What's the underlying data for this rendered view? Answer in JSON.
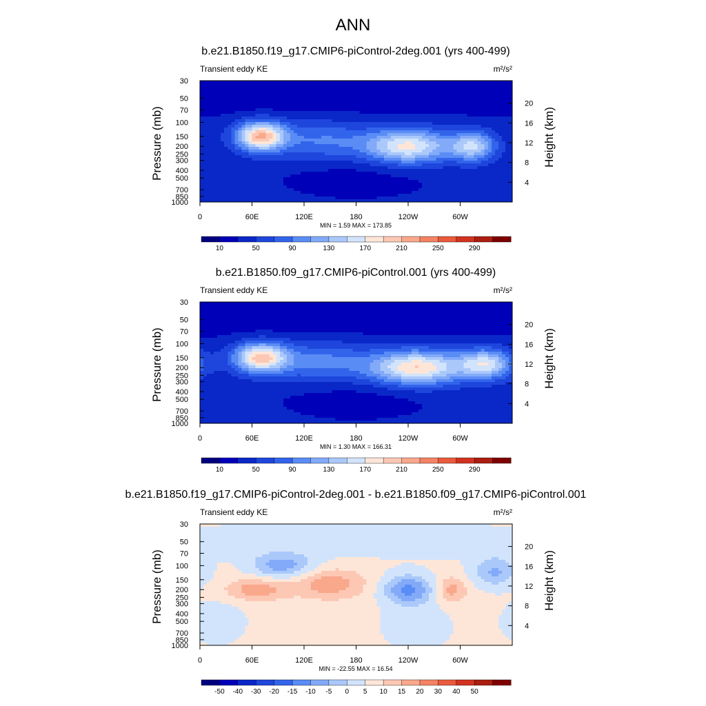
{
  "figure": {
    "title": "ANN"
  },
  "colors": {
    "abs_scale": [
      "#00007f",
      "#0000b8",
      "#0a28c8",
      "#1e46dc",
      "#3264eb",
      "#5a8cf5",
      "#82aaf8",
      "#aac8fa",
      "#d2e4fc",
      "#fde6d8",
      "#fcc8b4",
      "#f9a88c",
      "#f48264",
      "#ea5a3c",
      "#d23220",
      "#aa1e10",
      "#7f0000"
    ],
    "diff_scale": [
      "#00007f",
      "#0000b8",
      "#0a28c8",
      "#1e46dc",
      "#3264eb",
      "#5a8cf5",
      "#82aaf8",
      "#aac8fa",
      "#d2e4fc",
      "#fde6d8",
      "#fcc8b4",
      "#f9a88c",
      "#f48264",
      "#ea5a3c",
      "#d23220",
      "#aa1e10",
      "#7f0000"
    ]
  },
  "chart_data": [
    {
      "type": "heatmap",
      "title": "b.e21.B1850.f19_g17.CMIP6-piControl-2deg.001 (yrs 400-499)",
      "left_label": "Transient eddy KE",
      "units": "m²/s²",
      "ylabel": "Pressure (mb)",
      "y2label": "Height (km)",
      "x_ticks": [
        "0",
        "60E",
        "120E",
        "180",
        "120W",
        "60W"
      ],
      "x_tick_values": [
        0,
        60,
        120,
        180,
        240,
        300
      ],
      "xlim": [
        0,
        360
      ],
      "y_ticks": [
        "30",
        "50",
        "70",
        "100",
        "150",
        "200",
        "250",
        "300",
        "400",
        "500",
        "700",
        "850",
        "1000"
      ],
      "y_tick_values": [
        30,
        50,
        70,
        100,
        150,
        200,
        250,
        300,
        400,
        500,
        700,
        850,
        1000
      ],
      "ylim": [
        30,
        1000
      ],
      "y2_ticks": [
        "4",
        "8",
        "12",
        "16",
        "20"
      ],
      "y2_tick_values": [
        4,
        8,
        12,
        16,
        20
      ],
      "min_max_text": "MIN =   1.59  MAX = 173.85",
      "colorbar_labels": [
        "10",
        "50",
        "90",
        "130",
        "170",
        "210",
        "250",
        "290"
      ],
      "levels": [
        10,
        30,
        50,
        70,
        90,
        110,
        130,
        150,
        170,
        190,
        210,
        230,
        250,
        270,
        290,
        310
      ],
      "base_value": 35,
      "blobs": [
        {
          "lon": 70,
          "p": 150,
          "value": 170,
          "slon": 20,
          "sp": 0.3
        },
        {
          "lon": 240,
          "p": 200,
          "value": 140,
          "slon": 35,
          "sp": 0.35
        },
        {
          "lon": 315,
          "p": 200,
          "value": 110,
          "slon": 18,
          "sp": 0.3
        },
        {
          "lon": 140,
          "p": 170,
          "value": 55,
          "slon": 40,
          "sp": 0.4
        },
        {
          "lon": 180,
          "p": 500,
          "value": -15,
          "slon": 60,
          "sp": 0.4
        },
        {
          "lon": 180,
          "p": 40,
          "value": -25,
          "slon": 400,
          "sp": 0.45
        }
      ]
    },
    {
      "type": "heatmap",
      "title": "b.e21.B1850.f09_g17.CMIP6-piControl.001 (yrs 400-499)",
      "left_label": "Transient eddy KE",
      "units": "m²/s²",
      "ylabel": "Pressure (mb)",
      "y2label": "Height (km)",
      "x_ticks": [
        "0",
        "60E",
        "120E",
        "180",
        "120W",
        "60W"
      ],
      "x_tick_values": [
        0,
        60,
        120,
        180,
        240,
        300
      ],
      "xlim": [
        0,
        360
      ],
      "y_ticks": [
        "30",
        "50",
        "70",
        "100",
        "150",
        "200",
        "250",
        "300",
        "400",
        "500",
        "700",
        "850",
        "1000"
      ],
      "y_tick_values": [
        30,
        50,
        70,
        100,
        150,
        200,
        250,
        300,
        400,
        500,
        700,
        850,
        1000
      ],
      "ylim": [
        30,
        1000
      ],
      "y2_ticks": [
        "4",
        "8",
        "12",
        "16",
        "20"
      ],
      "y2_tick_values": [
        4,
        8,
        12,
        16,
        20
      ],
      "min_max_text": "MIN =   1.30  MAX = 166.31",
      "colorbar_labels": [
        "10",
        "50",
        "90",
        "130",
        "170",
        "210",
        "250",
        "290"
      ],
      "levels": [
        10,
        30,
        50,
        70,
        90,
        110,
        130,
        150,
        170,
        190,
        210,
        230,
        250,
        270,
        290,
        310
      ],
      "base_value": 35,
      "blobs": [
        {
          "lon": 70,
          "p": 150,
          "value": 160,
          "slon": 22,
          "sp": 0.3
        },
        {
          "lon": 250,
          "p": 200,
          "value": 155,
          "slon": 38,
          "sp": 0.35
        },
        {
          "lon": 330,
          "p": 180,
          "value": 120,
          "slon": 22,
          "sp": 0.3
        },
        {
          "lon": 140,
          "p": 170,
          "value": 60,
          "slon": 40,
          "sp": 0.4
        },
        {
          "lon": 180,
          "p": 500,
          "value": -15,
          "slon": 60,
          "sp": 0.4
        },
        {
          "lon": 180,
          "p": 40,
          "value": -25,
          "slon": 400,
          "sp": 0.45
        }
      ]
    },
    {
      "type": "heatmap",
      "title": "b.e21.B1850.f19_g17.CMIP6-piControl-2deg.001 - b.e21.B1850.f09_g17.CMIP6-piControl.001",
      "left_label": "Transient eddy KE",
      "units": "m²/s²",
      "ylabel": "Pressure (mb)",
      "y2label": "Height (km)",
      "x_ticks": [
        "0",
        "60E",
        "120E",
        "180",
        "120W",
        "60W"
      ],
      "x_tick_values": [
        0,
        60,
        120,
        180,
        240,
        300
      ],
      "xlim": [
        0,
        360
      ],
      "y_ticks": [
        "30",
        "50",
        "70",
        "100",
        "150",
        "200",
        "250",
        "300",
        "400",
        "500",
        "700",
        "850",
        "1000"
      ],
      "y_tick_values": [
        30,
        50,
        70,
        100,
        150,
        200,
        250,
        300,
        400,
        500,
        700,
        850,
        1000
      ],
      "ylim": [
        30,
        1000
      ],
      "y2_ticks": [
        "4",
        "8",
        "12",
        "16",
        "20"
      ],
      "y2_tick_values": [
        4,
        8,
        12,
        16,
        20
      ],
      "min_max_text": "MIN = -22.55  MAX =  16.54",
      "colorbar_labels": [
        "-50",
        "-40",
        "-30",
        "-20",
        "-15",
        "-10",
        "-5",
        "0",
        "5",
        "10",
        "15",
        "20",
        "30",
        "40",
        "50"
      ],
      "levels": [
        -60,
        -50,
        -40,
        -30,
        -20,
        -15,
        -10,
        -5,
        0,
        5,
        10,
        15,
        20,
        30,
        40,
        50,
        60
      ],
      "base_value": 1.5,
      "blobs": [
        {
          "lon": 95,
          "p": 100,
          "value": -14,
          "slon": 25,
          "sp": 0.25
        },
        {
          "lon": 240,
          "p": 200,
          "value": -18,
          "slon": 20,
          "sp": 0.3
        },
        {
          "lon": 340,
          "p": 120,
          "value": -12,
          "slon": 18,
          "sp": 0.3
        },
        {
          "lon": 65,
          "p": 200,
          "value": 12,
          "slon": 25,
          "sp": 0.22
        },
        {
          "lon": 150,
          "p": 170,
          "value": 12,
          "slon": 28,
          "sp": 0.3
        },
        {
          "lon": 290,
          "p": 200,
          "value": 11,
          "slon": 12,
          "sp": 0.25
        },
        {
          "lon": 180,
          "p": 50,
          "value": -4,
          "slon": 400,
          "sp": 0.35
        },
        {
          "lon": 20,
          "p": 500,
          "value": -4,
          "slon": 25,
          "sp": 0.5
        },
        {
          "lon": 250,
          "p": 600,
          "value": -4,
          "slon": 30,
          "sp": 0.5
        }
      ]
    }
  ]
}
